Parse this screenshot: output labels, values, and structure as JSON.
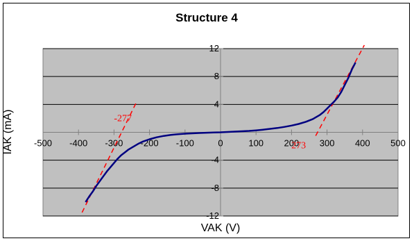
{
  "chart_data": {
    "type": "line",
    "title": "Structure  4",
    "xlabel": "VAK (V)",
    "ylabel": "IAK (mA)",
    "xlim": [
      -500,
      500
    ],
    "ylim": [
      -12,
      12
    ],
    "xticks": [
      -500,
      -400,
      -300,
      -200,
      -100,
      0,
      100,
      200,
      300,
      400,
      500
    ],
    "yticks": [
      -12,
      -8,
      -4,
      0,
      4,
      8,
      12
    ],
    "grid": "horizontal",
    "plot_background": "#c0c0c0",
    "series": [
      {
        "color": "#000080",
        "x": [
          -380,
          -370,
          -360,
          -350,
          -340,
          -330,
          -320,
          -310,
          -300,
          -290,
          -280,
          -270,
          -260,
          -250,
          -240,
          -230,
          -220,
          -200,
          -180,
          -160,
          -140,
          -120,
          -100,
          -80,
          -60,
          -40,
          -20,
          0,
          20,
          40,
          60,
          80,
          100,
          120,
          140,
          160,
          180,
          200,
          220,
          240,
          260,
          270,
          280,
          290,
          300,
          310,
          320,
          330,
          340,
          350,
          360,
          370,
          380
        ],
        "y": [
          -10.0,
          -9.2,
          -8.5,
          -7.7,
          -7.0,
          -6.3,
          -5.6,
          -5.0,
          -4.4,
          -3.8,
          -3.3,
          -2.9,
          -2.5,
          -2.2,
          -1.9,
          -1.6,
          -1.35,
          -1.0,
          -0.72,
          -0.52,
          -0.38,
          -0.27,
          -0.2,
          -0.15,
          -0.1,
          -0.06,
          -0.02,
          0,
          0.05,
          0.1,
          0.15,
          0.2,
          0.28,
          0.38,
          0.5,
          0.62,
          0.78,
          0.97,
          1.2,
          1.5,
          1.9,
          2.2,
          2.5,
          2.9,
          3.4,
          3.9,
          4.4,
          5.0,
          5.8,
          6.8,
          7.8,
          9.0,
          10.0
        ]
      }
    ],
    "reference_lines": [
      {
        "style": "dashed",
        "color": "#ff0000",
        "x": [
          -390,
          -235
        ],
        "y": [
          -11.5,
          4.5
        ]
      },
      {
        "style": "dashed",
        "color": "#ff0000",
        "x": [
          268,
          405
        ],
        "y": [
          -0.5,
          12.5
        ]
      }
    ],
    "annotations": [
      {
        "text": "-277",
        "x": -275,
        "y": 1.6,
        "color": "#ff0000"
      },
      {
        "text": "273",
        "x": 220,
        "y": -2.3,
        "color": "#ff0000"
      }
    ]
  }
}
